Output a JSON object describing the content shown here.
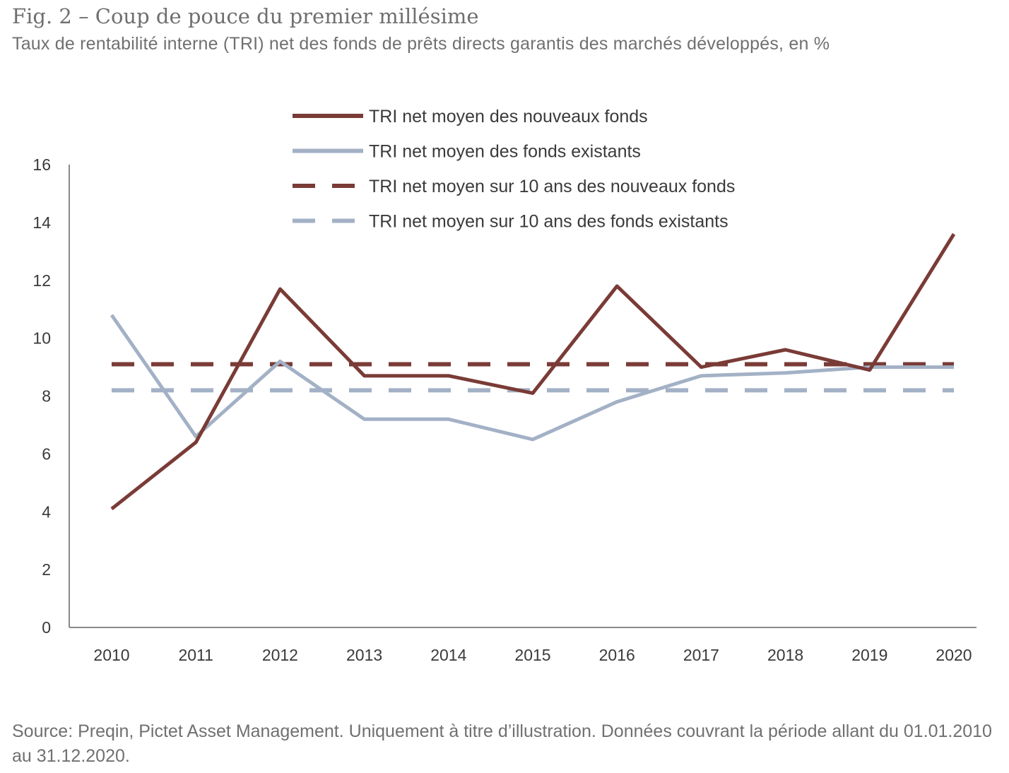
{
  "figure": {
    "title": "Fig. 2 – Coup de pouce du premier millésime",
    "subtitle": "Taux de rentabilité interne (TRI) net des fonds de prêts directs garantis des marchés développés, en %",
    "source": "Source: Preqin, Pictet Asset Management. Uniquement à titre d’illustration. Données couvrant la période allant du 01.01.2010 au 31.12.2020."
  },
  "chart_data": {
    "type": "line",
    "title": "Fig. 2 – Coup de pouce du premier millésime",
    "subtitle": "Taux de rentabilité interne (TRI) net des fonds de prêts directs garantis des marchés développés, en %",
    "xlabel": "",
    "ylabel": "",
    "x": [
      "2010",
      "2011",
      "2012",
      "2013",
      "2014",
      "2015",
      "2016",
      "2017",
      "2018",
      "2019",
      "2020"
    ],
    "ylim": [
      0,
      16
    ],
    "yticks": [
      "0",
      "2",
      "4",
      "6",
      "8",
      "10",
      "12",
      "14",
      "16"
    ],
    "grid": false,
    "legend_position": "top-center",
    "series": [
      {
        "name": "TRI net moyen des nouveaux fonds",
        "color": "#7a3b36",
        "style": "solid",
        "values": [
          4.1,
          6.4,
          11.7,
          8.7,
          8.7,
          8.1,
          11.8,
          9.0,
          9.6,
          8.9,
          13.6
        ]
      },
      {
        "name": "TRI net moyen des fonds existants",
        "color": "#a3b1c6",
        "style": "solid",
        "values": [
          10.8,
          6.6,
          9.2,
          7.2,
          7.2,
          6.5,
          7.8,
          8.7,
          8.8,
          9.0,
          9.0
        ]
      },
      {
        "name": "TRI net moyen sur 10 ans des nouveaux fonds",
        "color": "#7a3b36",
        "style": "dashed",
        "values": [
          9.1,
          9.1,
          9.1,
          9.1,
          9.1,
          9.1,
          9.1,
          9.1,
          9.1,
          9.1,
          9.1
        ]
      },
      {
        "name": "TRI net moyen sur 10 ans des fonds existants",
        "color": "#a3b1c6",
        "style": "dashed",
        "values": [
          8.2,
          8.2,
          8.2,
          8.2,
          8.2,
          8.2,
          8.2,
          8.2,
          8.2,
          8.2,
          8.2
        ]
      }
    ]
  }
}
